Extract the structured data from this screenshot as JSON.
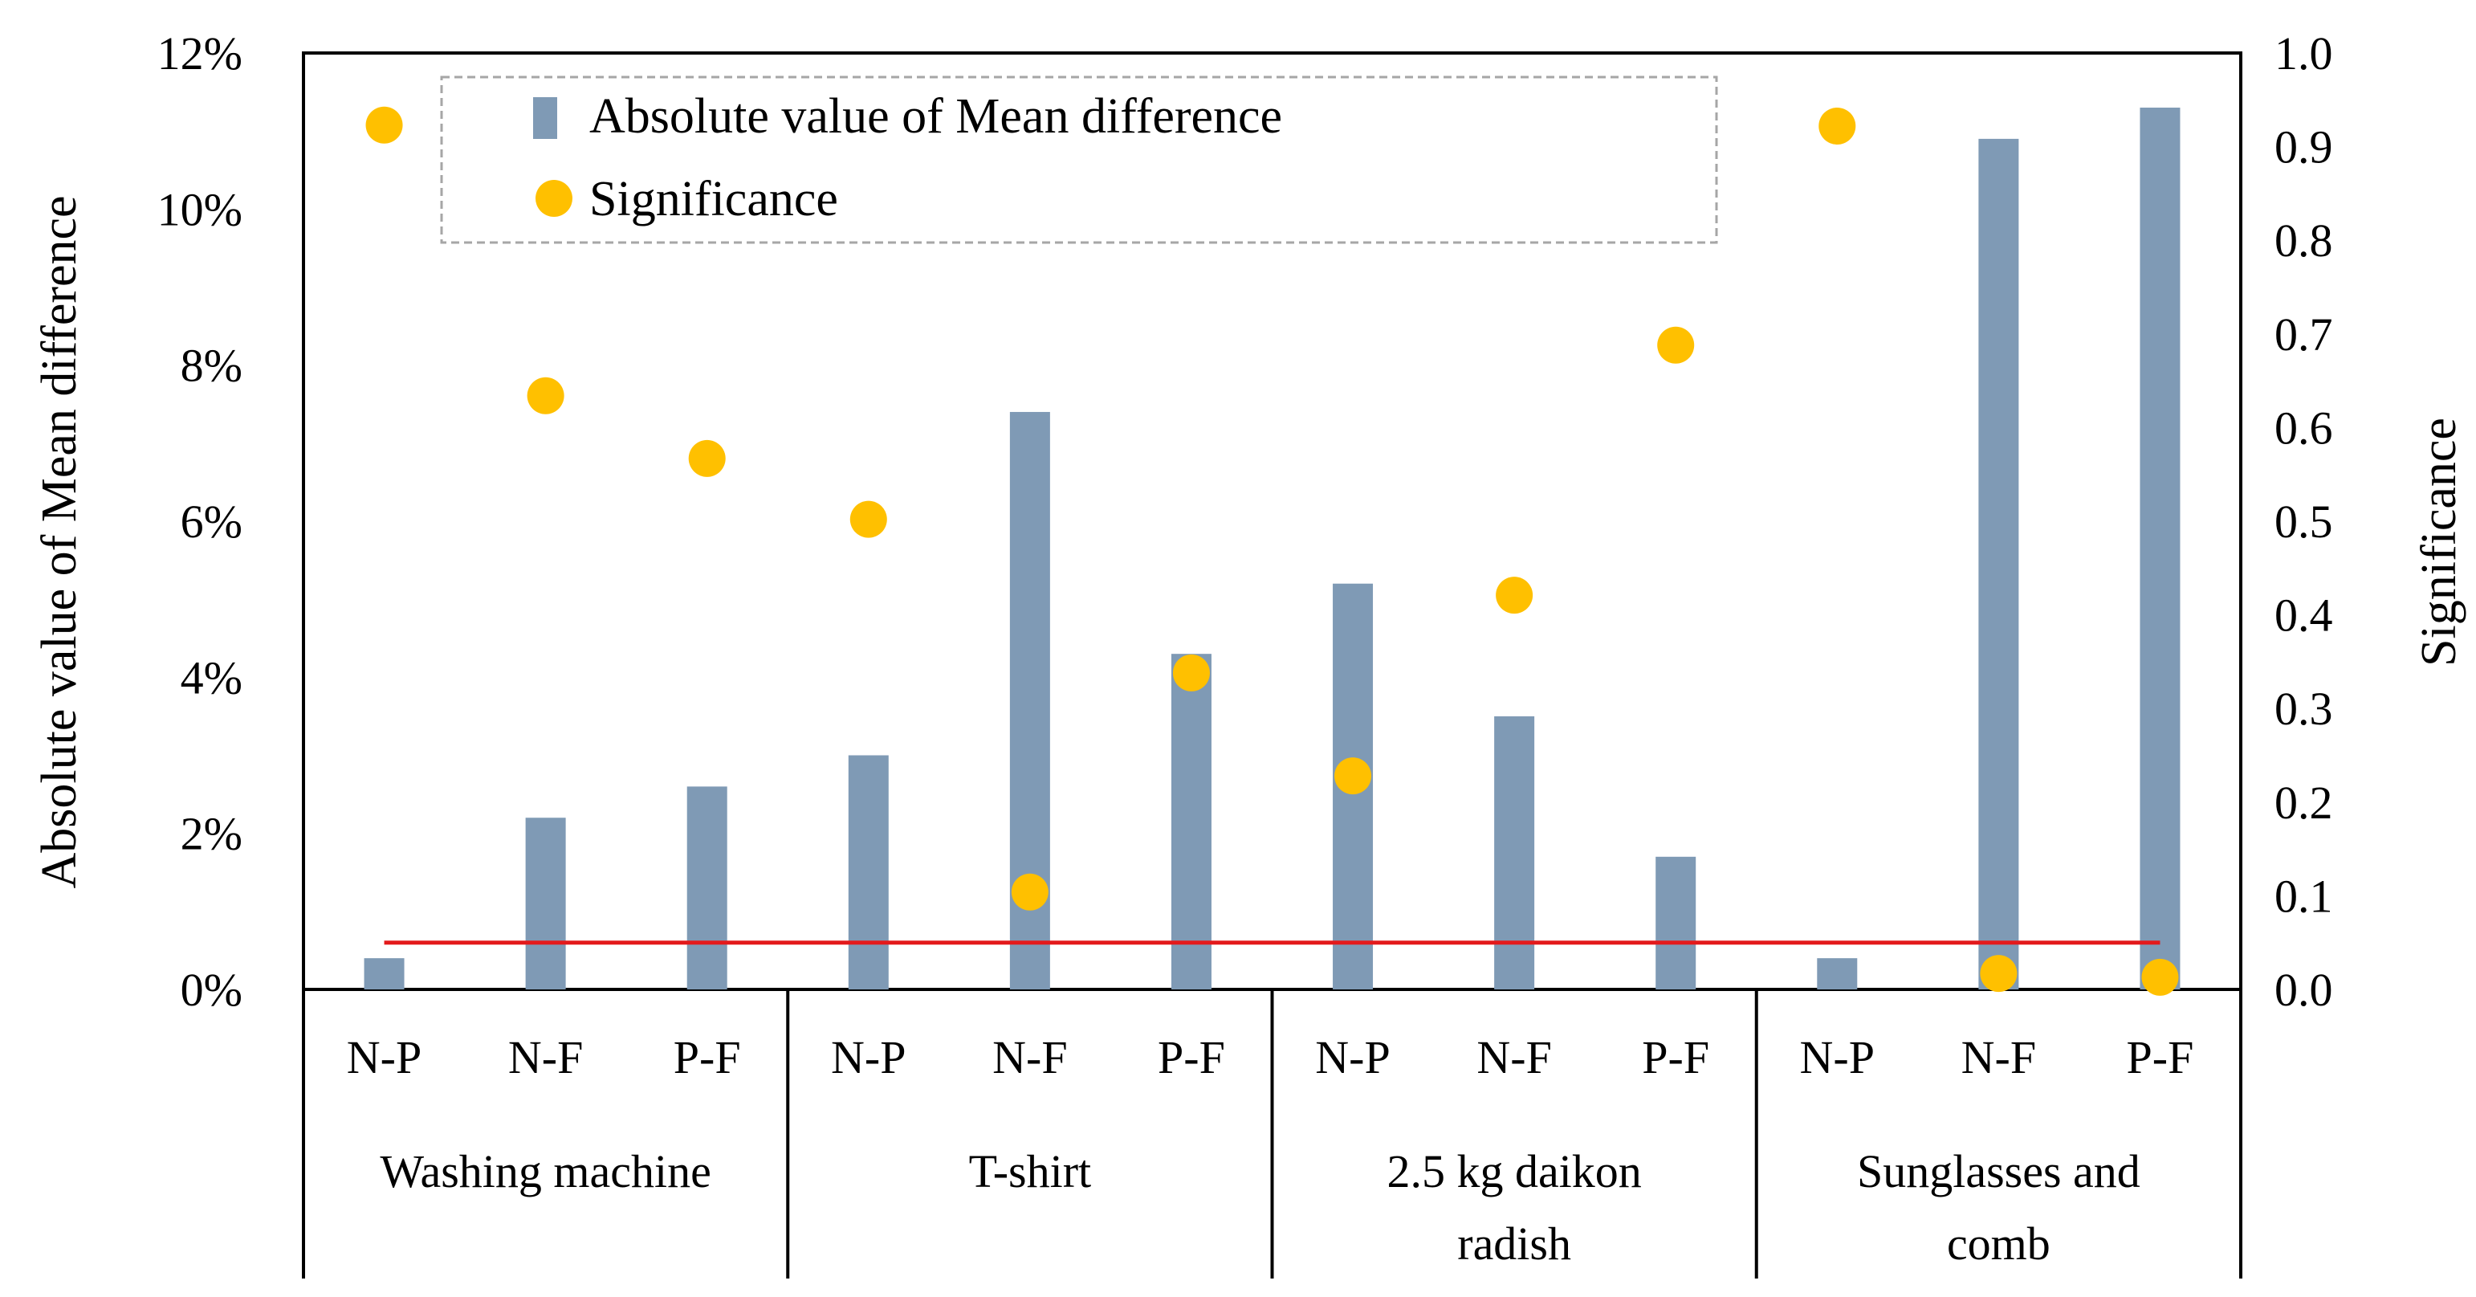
{
  "chart_data": {
    "type": "bar",
    "colors": {
      "bar": "#7f9ab5",
      "dot": "#ffc000",
      "threshold": "#e31a1c",
      "legend_border": "#a6a6a6"
    },
    "groups": [
      {
        "name": "Washing machine",
        "lines": [
          "Washing machine"
        ]
      },
      {
        "name": "T-shirt",
        "lines": [
          "T-shirt"
        ]
      },
      {
        "name": "2.5 kg daikon radish",
        "lines": [
          "2.5 kg daikon",
          "radish"
        ]
      },
      {
        "name": "Sunglasses and comb",
        "lines": [
          "Sunglasses and",
          "comb"
        ]
      }
    ],
    "categories": [
      "N-P",
      "N-F",
      "P-F",
      "N-P",
      "N-F",
      "P-F",
      "N-P",
      "N-F",
      "P-F",
      "N-P",
      "N-F",
      "P-F"
    ],
    "series": [
      {
        "name": "Absolute value of Mean difference",
        "kind": "bar",
        "axis": "left",
        "values": [
          0.4,
          2.2,
          2.6,
          3.0,
          7.4,
          4.3,
          5.2,
          3.5,
          1.7,
          0.4,
          10.9,
          11.3
        ]
      },
      {
        "name": "Significance",
        "kind": "scatter",
        "axis": "right",
        "values": [
          0.923,
          0.634,
          0.567,
          0.502,
          0.104,
          0.338,
          0.228,
          0.421,
          0.688,
          0.922,
          0.017,
          0.013
        ]
      }
    ],
    "threshold": {
      "value": 0.05,
      "axis": "right"
    },
    "left_axis": {
      "label": "Absolute value of Mean difference",
      "ylim": [
        0,
        12
      ],
      "ticks": [
        0,
        2,
        4,
        6,
        8,
        10,
        12
      ],
      "tick_labels": [
        "0%",
        "2%",
        "4%",
        "6%",
        "8%",
        "10%",
        "12%"
      ]
    },
    "right_axis": {
      "label": "Significance",
      "ylim": [
        0,
        1.0
      ],
      "ticks": [
        0,
        0.1,
        0.2,
        0.3,
        0.4,
        0.5,
        0.6,
        0.7,
        0.8,
        0.9,
        1.0
      ],
      "tick_labels": [
        "0.0",
        "0.1",
        "0.2",
        "0.3",
        "0.4",
        "0.5",
        "0.6",
        "0.7",
        "0.8",
        "0.9",
        "1.0"
      ]
    },
    "legend": {
      "position": "top-center",
      "entries": [
        "Absolute value of Mean difference",
        "Significance"
      ]
    }
  }
}
